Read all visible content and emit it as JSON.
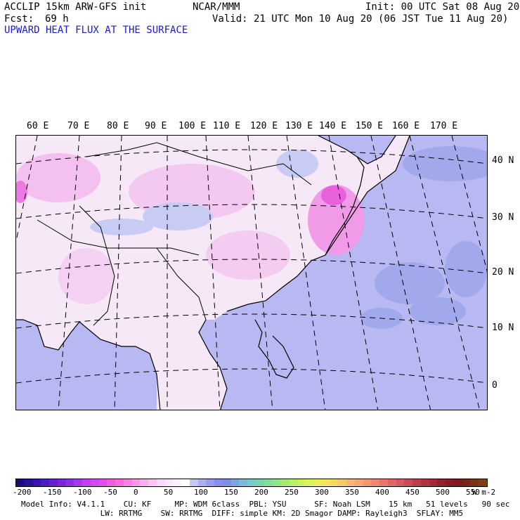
{
  "header": {
    "model": "ACCLIP 15km ARW-GFS init",
    "org": "NCAR/MMM",
    "init": "Init: 00 UTC Sat 08 Aug 20",
    "fcst_label": "Fcst:",
    "fcst_value": "69 h",
    "valid": "Valid: 21 UTC Mon 10 Aug 20 (06 JST Tue 11 Aug 20)",
    "field": "UPWARD HEAT FLUX AT THE SURFACE"
  },
  "map": {
    "lon_labels": [
      "60 E",
      "70 E",
      "80 E",
      "90 E",
      "100 E",
      "110 E",
      "120 E",
      "130 E",
      "140 E",
      "150 E",
      "160 E",
      "170 E"
    ],
    "lat_labels": [
      "40 N",
      "30 N",
      "20 N",
      "10 N",
      "0"
    ]
  },
  "colorbar": {
    "ticks": [
      "-200",
      "-150",
      "-100",
      "-50",
      "0",
      "50",
      "100",
      "150",
      "200",
      "250",
      "300",
      "350",
      "400",
      "450",
      "500",
      "550"
    ],
    "units": "W m-2",
    "colors": [
      "#1a0a7a",
      "#2a0f96",
      "#3a14aa",
      "#4d1ac0",
      "#6420cc",
      "#7a26d8",
      "#9130e2",
      "#a838ea",
      "#c040ee",
      "#d448ee",
      "#e050e6",
      "#ea5ce0",
      "#f06ee0",
      "#f582e4",
      "#f898ea",
      "#fab0f0",
      "#fcc6f4",
      "#fdd8f8",
      "#fde6fa",
      "#fef0fc",
      "#ffffff",
      "#c6c6f6",
      "#aeb0f2",
      "#9a9eee",
      "#8a8eea",
      "#7c90e6",
      "#7aa6e2",
      "#78bcd8",
      "#76ccc8",
      "#76d8b0",
      "#7ee09a",
      "#8ee684",
      "#a4ea74",
      "#b8ee68",
      "#ccf060",
      "#def05c",
      "#eaee5c",
      "#f2e460",
      "#f6d664",
      "#f8c86a",
      "#f8b870",
      "#f6a870",
      "#f29870",
      "#ec8870",
      "#e67870",
      "#de6868",
      "#d45a60",
      "#c84c56",
      "#bc404c",
      "#ae3442",
      "#a02a36",
      "#92222c",
      "#861c24",
      "#7c1a1c",
      "#7a2414",
      "#7c3010",
      "#80400c"
    ]
  },
  "footer": {
    "line1": "Model Info: V4.1.1    CU: KF     MP: WDM 6class  PBL: YSU      SF: Noah LSM    15 km   51 levels   90 sec",
    "line2": "                 LW: RRTMG    SW: RRTMG  DIFF: simple KM: 2D Smagor DAMP: Rayleigh3  SFLAY: MM5"
  }
}
